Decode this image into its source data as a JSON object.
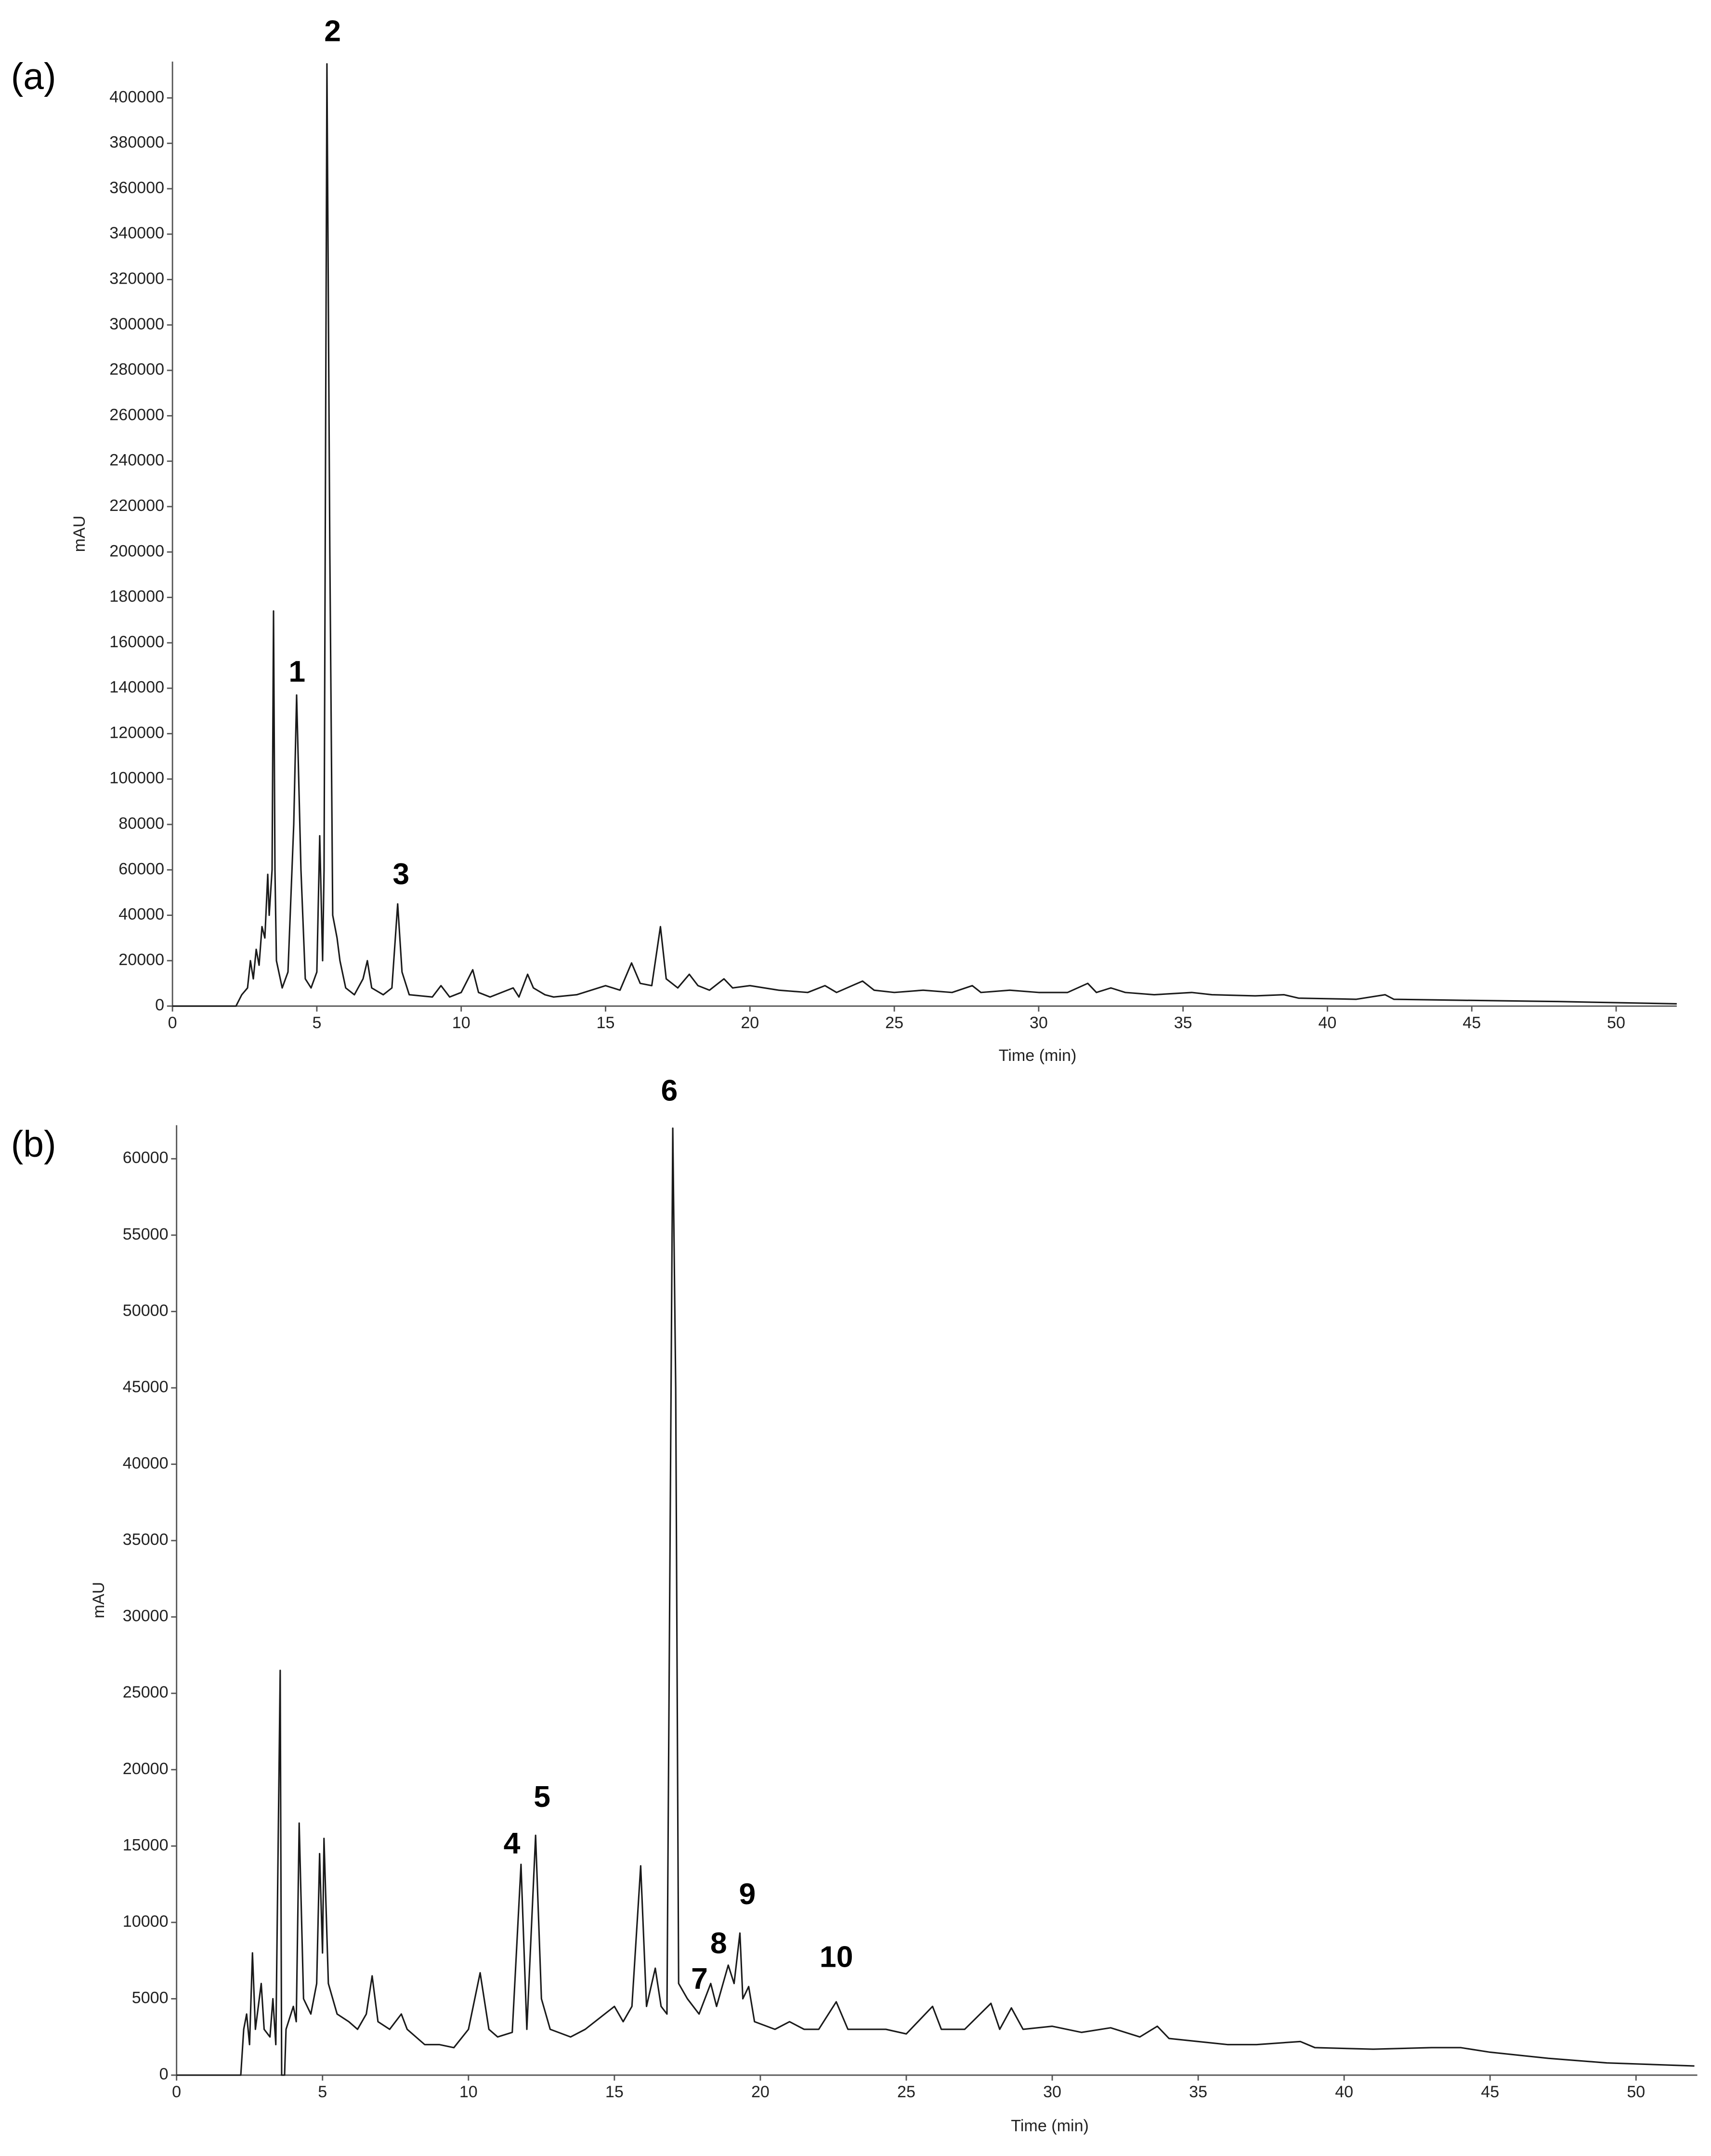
{
  "chart_data": [
    {
      "type": "line",
      "panel_label": "(a)",
      "xlabel": "Time (min)",
      "ylabel": "mAU",
      "color": "#1a1a1a",
      "xlim": [
        0,
        52.1
      ],
      "ylim": [
        0,
        416000
      ],
      "xticks": [
        0,
        5,
        10,
        15,
        20,
        25,
        30,
        35,
        40,
        45,
        50
      ],
      "yticks": [
        0,
        20000,
        40000,
        60000,
        80000,
        100000,
        120000,
        140000,
        160000,
        180000,
        200000,
        220000,
        240000,
        260000,
        280000,
        300000,
        320000,
        340000,
        360000,
        380000,
        400000
      ],
      "annotations": [
        "1",
        "2",
        "3"
      ],
      "x": [
        0,
        2.2,
        2.4,
        2.6,
        2.7,
        2.8,
        2.9,
        3.0,
        3.1,
        3.2,
        3.3,
        3.35,
        3.45,
        3.5,
        3.55,
        3.6,
        3.8,
        4.0,
        4.2,
        4.3,
        4.45,
        4.6,
        4.8,
        5.0,
        5.1,
        5.2,
        5.25,
        5.35,
        5.45,
        5.55,
        5.7,
        5.8,
        6.0,
        6.3,
        6.6,
        6.75,
        6.9,
        7.3,
        7.6,
        7.8,
        7.95,
        8.2,
        9.0,
        9.3,
        9.6,
        10.0,
        10.4,
        10.6,
        11.0,
        11.8,
        12.0,
        12.3,
        12.5,
        12.9,
        13.2,
        14.0,
        15.0,
        15.5,
        15.9,
        16.2,
        16.6,
        16.9,
        17.1,
        17.5,
        17.9,
        18.2,
        18.6,
        19.1,
        19.4,
        20.0,
        21.0,
        22.0,
        22.6,
        23.0,
        23.9,
        24.3,
        25.0,
        26.0,
        27.0,
        27.7,
        28.0,
        29.0,
        30.0,
        31.0,
        31.7,
        32.0,
        32.5,
        33.0,
        34.0,
        35.3,
        36.0,
        37.5,
        38.5,
        39.0,
        41.0,
        42.0,
        42.3,
        45.0,
        48.0,
        50.0,
        52.1
      ],
      "values": [
        0,
        0,
        5000,
        8000,
        20000,
        12000,
        25000,
        18000,
        35000,
        30000,
        58000,
        40000,
        60000,
        174000,
        60000,
        20000,
        8000,
        15000,
        80000,
        137000,
        60000,
        12000,
        8000,
        15000,
        75000,
        20000,
        60000,
        415000,
        200000,
        40000,
        30000,
        20000,
        8000,
        5000,
        12000,
        20000,
        8000,
        5000,
        8000,
        45000,
        15000,
        5000,
        4000,
        9000,
        4000,
        6000,
        16000,
        6000,
        4000,
        8000,
        4000,
        14000,
        8000,
        5000,
        4000,
        5000,
        9000,
        7000,
        19000,
        10000,
        9000,
        35000,
        12000,
        8000,
        14000,
        9000,
        7000,
        12000,
        8000,
        9000,
        7000,
        6000,
        9000,
        6000,
        11000,
        7000,
        6000,
        7000,
        6000,
        9000,
        6000,
        7000,
        6000,
        6000,
        10000,
        6000,
        8000,
        6000,
        5000,
        6000,
        5000,
        4500,
        5000,
        3500,
        3000,
        5000,
        3000,
        2500,
        2000,
        1500,
        1000
      ]
    },
    {
      "type": "line",
      "panel_label": "(b)",
      "xlabel": "Time (min)",
      "ylabel": "mAU",
      "color": "#1a1a1a",
      "xlim": [
        0,
        52.1
      ],
      "ylim": [
        0,
        62200
      ],
      "xticks": [
        0,
        5,
        10,
        15,
        20,
        25,
        30,
        35,
        40,
        45,
        50
      ],
      "yticks": [
        0,
        5000,
        10000,
        15000,
        20000,
        25000,
        30000,
        35000,
        40000,
        45000,
        50000,
        55000,
        60000
      ],
      "annotations": [
        "4",
        "5",
        "6",
        "7",
        "8",
        "9",
        "10"
      ],
      "x": [
        0,
        2.2,
        2.3,
        2.4,
        2.5,
        2.6,
        2.7,
        2.9,
        3.0,
        3.2,
        3.3,
        3.4,
        3.55,
        3.6,
        3.7,
        3.75,
        4.0,
        4.1,
        4.2,
        4.35,
        4.6,
        4.8,
        4.9,
        5.0,
        5.05,
        5.2,
        5.5,
        5.9,
        6.2,
        6.5,
        6.7,
        6.9,
        7.3,
        7.7,
        7.9,
        8.5,
        9.0,
        9.5,
        10.0,
        10.4,
        10.7,
        11.0,
        11.5,
        11.8,
        12.0,
        12.3,
        12.5,
        12.8,
        13.5,
        14.0,
        15.0,
        15.3,
        15.6,
        15.9,
        16.1,
        16.4,
        16.6,
        16.8,
        17.0,
        17.1,
        17.2,
        17.5,
        17.9,
        18.3,
        18.5,
        18.9,
        19.1,
        19.3,
        19.4,
        19.6,
        19.8,
        20.5,
        21.0,
        21.5,
        22.0,
        22.6,
        23.0,
        24.3,
        25.0,
        25.9,
        26.2,
        27.0,
        27.9,
        28.2,
        28.6,
        29.0,
        30.0,
        31.0,
        32.0,
        33.0,
        33.6,
        34.0,
        35.0,
        36.0,
        37.0,
        38.5,
        39.0,
        41.0,
        43.0,
        44.0,
        45.0,
        47.0,
        49.0,
        52.0
      ],
      "values": [
        0,
        0,
        3000,
        4000,
        2000,
        8000,
        3000,
        6000,
        3000,
        2500,
        5000,
        2000,
        26500,
        0,
        0,
        3000,
        4500,
        3500,
        16500,
        5000,
        4000,
        6000,
        14500,
        8000,
        15500,
        6000,
        4000,
        3500,
        3000,
        4000,
        6500,
        3500,
        3000,
        4000,
        3000,
        2000,
        2000,
        1800,
        3000,
        6700,
        3000,
        2500,
        2800,
        13800,
        3000,
        15700,
        5000,
        3000,
        2500,
        3000,
        4500,
        3500,
        4500,
        13700,
        4500,
        7000,
        4500,
        4000,
        62000,
        45000,
        6000,
        5000,
        4000,
        6000,
        4500,
        7200,
        6000,
        9300,
        5000,
        5800,
        3500,
        3000,
        3500,
        3000,
        3000,
        4800,
        3000,
        3000,
        2700,
        4500,
        3000,
        3000,
        4700,
        3000,
        4400,
        3000,
        3200,
        2800,
        3100,
        2500,
        3200,
        2400,
        2200,
        2000,
        2000,
        2200,
        1800,
        1700,
        1800,
        1800,
        1500,
        1100,
        800,
        600
      ]
    }
  ]
}
